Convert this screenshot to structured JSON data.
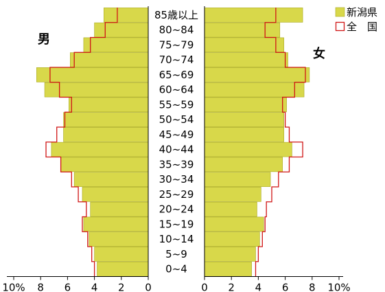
{
  "chart_data": {
    "type": "bar",
    "layout": "population-pyramid",
    "categories": [
      "85歳以上",
      "80~84",
      "75~79",
      "70~74",
      "65~69",
      "60~64",
      "55~59",
      "50~54",
      "45~49",
      "40~44",
      "35~39",
      "30~34",
      "25~29",
      "20~24",
      "15~19",
      "10~14",
      "5~9",
      "0~4"
    ],
    "series": [
      {
        "name": "新潟県",
        "male": [
          3.3,
          4.0,
          4.8,
          5.8,
          8.3,
          7.7,
          5.9,
          6.3,
          6.3,
          7.2,
          6.5,
          5.5,
          4.9,
          4.3,
          4.8,
          4.4,
          4.0,
          3.8
        ],
        "female": [
          7.3,
          5.6,
          5.9,
          6.2,
          7.8,
          7.4,
          6.1,
          5.9,
          5.9,
          6.5,
          5.8,
          4.9,
          4.2,
          3.9,
          4.4,
          4.1,
          3.8,
          3.5
        ]
      },
      {
        "name": "全　国",
        "male": [
          2.3,
          3.2,
          4.3,
          5.5,
          7.3,
          6.6,
          5.7,
          6.2,
          6.8,
          7.6,
          6.5,
          5.7,
          5.2,
          4.6,
          4.9,
          4.5,
          4.2,
          4.0
        ],
        "female": [
          5.3,
          4.5,
          5.3,
          6.0,
          7.5,
          6.7,
          5.8,
          6.0,
          6.3,
          7.3,
          6.3,
          5.5,
          5.0,
          4.6,
          4.5,
          4.3,
          4.0,
          3.8
        ]
      }
    ],
    "x_range": [
      0,
      10
    ],
    "x_ticks_male": [
      "10%",
      "8",
      "6",
      "4",
      "2",
      "0"
    ],
    "x_ticks_female": [
      "0",
      "2",
      "4",
      "6",
      "8",
      "10%"
    ],
    "male_label": "男",
    "female_label": "女",
    "legend_position": "top-right",
    "colors": {
      "prefecture_bar": "#d8d84a",
      "prefecture_bar_edge": "#a8a820",
      "national_line": "#d01414"
    }
  }
}
